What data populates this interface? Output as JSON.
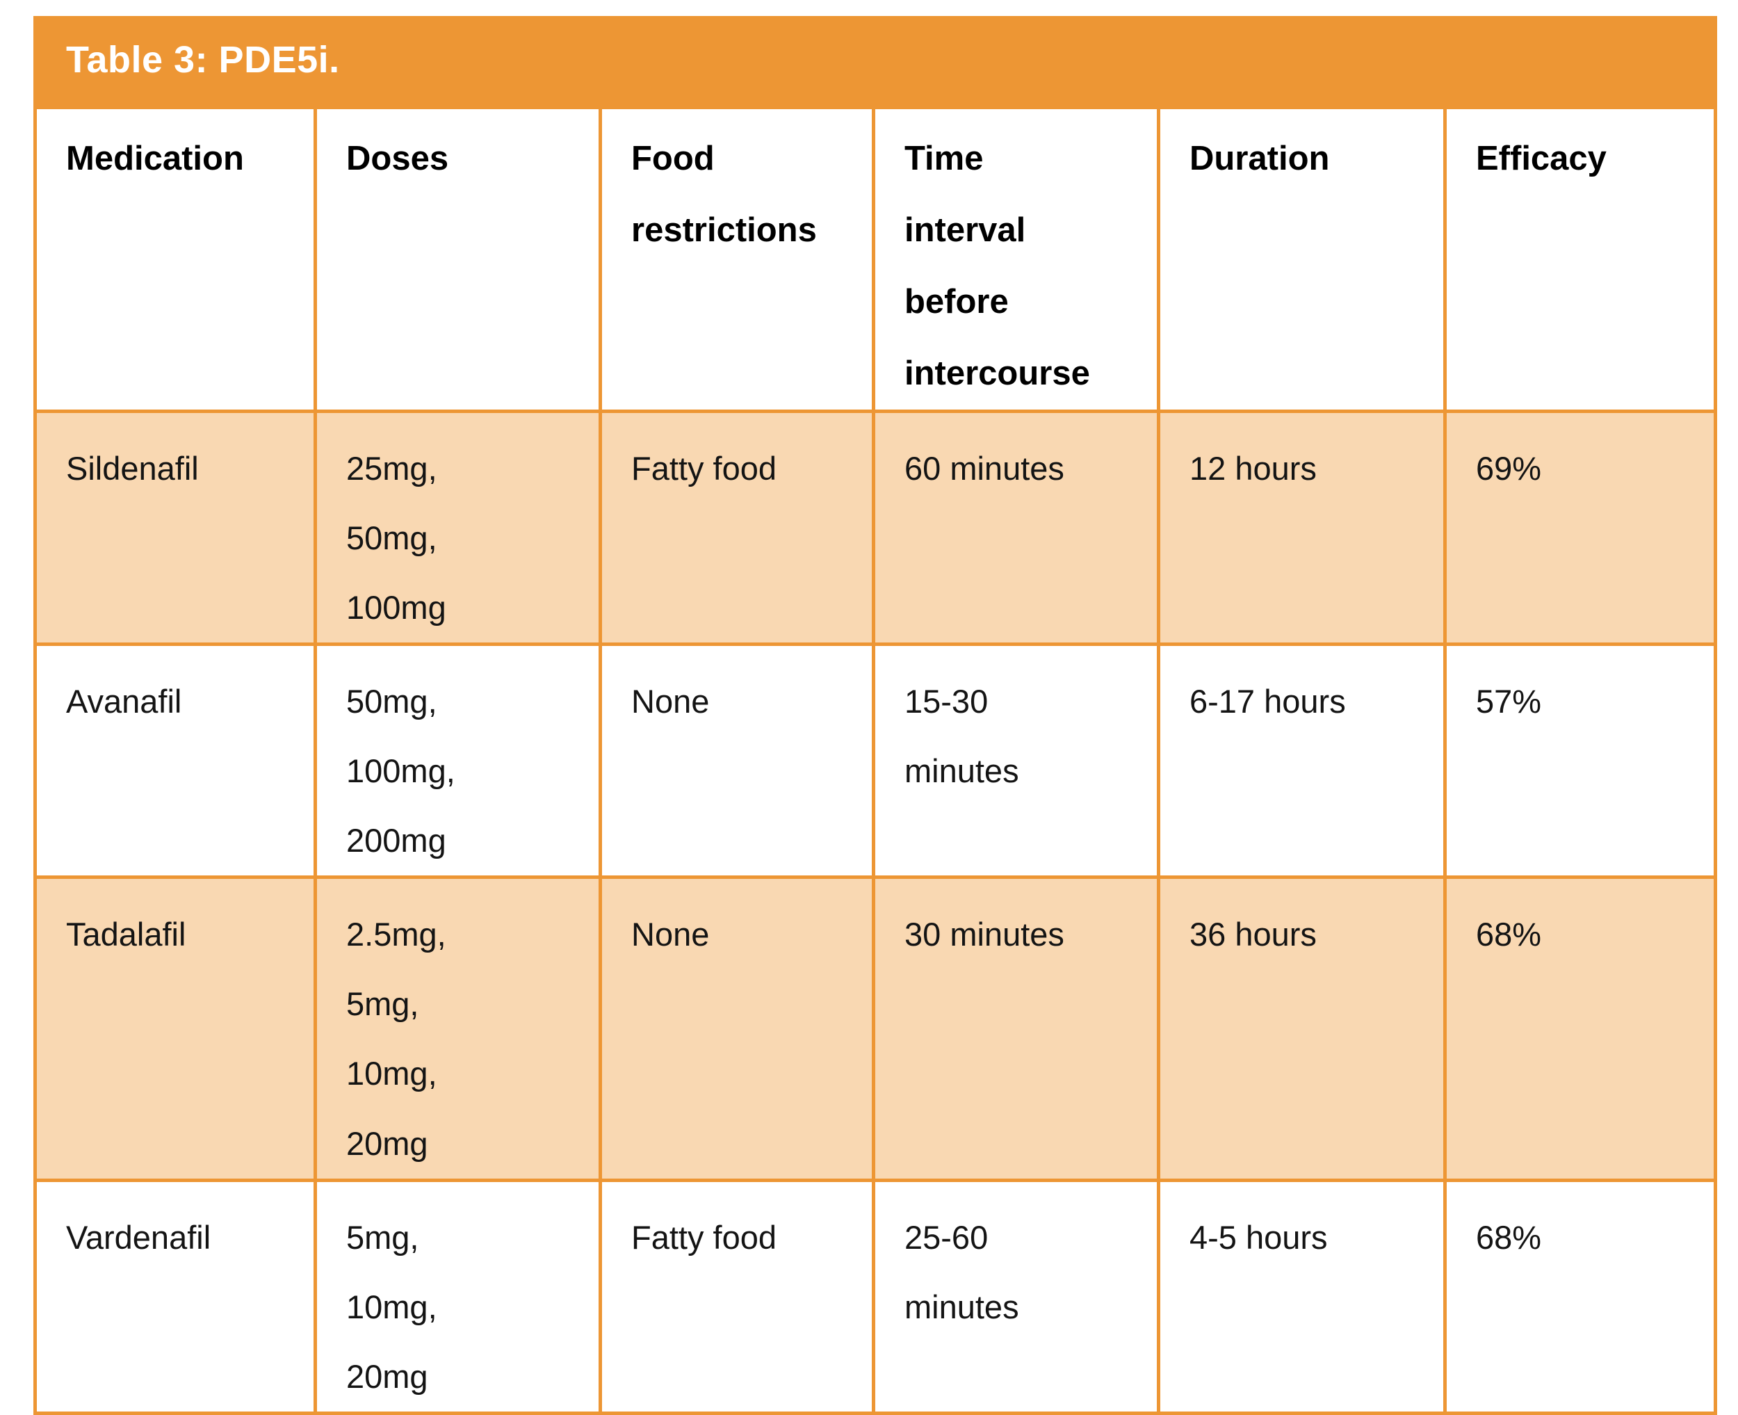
{
  "colors": {
    "accent_orange": "#ED9634",
    "row_shade": "#F9D8B2",
    "title_text": "#FFFFFF",
    "header_text": "#000000",
    "body_text": "#141414",
    "page_background": "#FFFFFF"
  },
  "table": {
    "title": "Table 3: PDE5i.",
    "columns": [
      {
        "key": "medication",
        "label": "Medication"
      },
      {
        "key": "doses",
        "label": "Doses"
      },
      {
        "key": "food-restrictions",
        "label": "Food\nrestrictions"
      },
      {
        "key": "time-interval",
        "label": "Time\ninterval\nbefore\nintercourse"
      },
      {
        "key": "duration",
        "label": "Duration"
      },
      {
        "key": "efficacy",
        "label": "Efficacy"
      }
    ],
    "rows": [
      {
        "key": "sildenafil",
        "shaded": true,
        "cells": [
          "Sildenafil",
          "25mg,\n50mg,\n100mg",
          "Fatty food",
          "60 minutes",
          "12 hours",
          "69%"
        ]
      },
      {
        "key": "avanafil",
        "shaded": false,
        "cells": [
          "Avanafil",
          "50mg,\n100mg,\n200mg",
          "None",
          "15-30\nminutes",
          "6-17 hours",
          "57%"
        ]
      },
      {
        "key": "tadalafil",
        "shaded": true,
        "cells": [
          "Tadalafil",
          "2.5mg,\n5mg,\n10mg,\n20mg",
          "None",
          "30 minutes",
          "36 hours",
          "68%"
        ]
      },
      {
        "key": "vardenafil",
        "shaded": false,
        "cells": [
          "Vardenafil",
          "5mg,\n10mg,\n20mg",
          "Fatty food",
          "25-60\nminutes",
          "4-5 hours",
          "68%"
        ]
      }
    ]
  }
}
